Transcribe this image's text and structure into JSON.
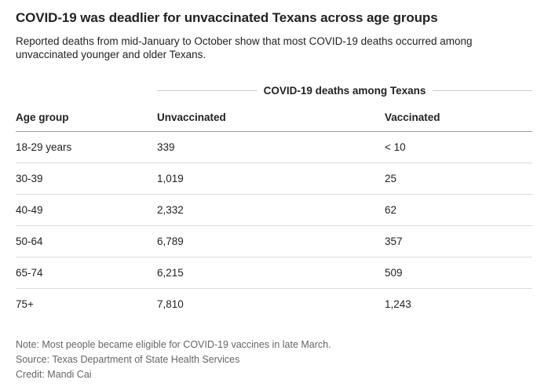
{
  "header": {
    "title": "COVID-19 was deadlier for unvaccinated Texans across age groups",
    "subtitle": "Reported deaths from mid-January to October show that most COVID-19 deaths occurred among unvaccinated younger and older Texans."
  },
  "table": {
    "group_header": "COVID-19 deaths among Texans",
    "columns": [
      "Age group",
      "Unvaccinated",
      "Vaccinated"
    ],
    "rows": [
      {
        "age_group": "18-29 years",
        "unvaccinated": "339",
        "vaccinated": "< 10"
      },
      {
        "age_group": "30-39",
        "unvaccinated": "1,019",
        "vaccinated": "25"
      },
      {
        "age_group": "40-49",
        "unvaccinated": "2,332",
        "vaccinated": "62"
      },
      {
        "age_group": "50-64",
        "unvaccinated": "6,789",
        "vaccinated": "357"
      },
      {
        "age_group": "65-74",
        "unvaccinated": "6,215",
        "vaccinated": "509"
      },
      {
        "age_group": "75+",
        "unvaccinated": "7,810",
        "vaccinated": "1,243"
      }
    ]
  },
  "footer": {
    "note": "Note: Most people became eligible for COVID-19 vaccines in late March.",
    "source": "Source: Texas Department of State Health Services",
    "credit": "Credit: Mandi Cai"
  },
  "colors": {
    "title_text": "#222222",
    "body_text": "#222222",
    "footer_text": "#666666",
    "header_rule": "#999999",
    "row_rule": "#dddddd",
    "group_header_rule": "#cccccc"
  },
  "chart_data": {
    "type": "table",
    "title": "COVID-19 was deadlier for unvaccinated Texans across age groups",
    "subtitle": "Reported deaths from mid-January to October show that most COVID-19 deaths occurred among unvaccinated younger and older Texans.",
    "group_header": "COVID-19 deaths among Texans",
    "columns": [
      "Age group",
      "Unvaccinated",
      "Vaccinated"
    ],
    "rows": [
      [
        "18-29 years",
        "339",
        "< 10"
      ],
      [
        "30-39",
        "1,019",
        "25"
      ],
      [
        "40-49",
        "2,332",
        "62"
      ],
      [
        "50-64",
        "6,789",
        "357"
      ],
      [
        "65-74",
        "6,215",
        "509"
      ],
      [
        "75+",
        "7,810",
        "1,243"
      ]
    ],
    "numeric_values": {
      "unvaccinated": [
        339,
        1019,
        2332,
        6789,
        6215,
        7810
      ],
      "vaccinated": [
        null,
        25,
        62,
        357,
        509,
        1243
      ],
      "vaccinated_note": "18-29 years vaccinated value shown as '< 10'"
    },
    "notes": [
      "Note: Most people became eligible for COVID-19 vaccines in late March.",
      "Source: Texas Department of State Health Services",
      "Credit: Mandi Cai"
    ]
  }
}
